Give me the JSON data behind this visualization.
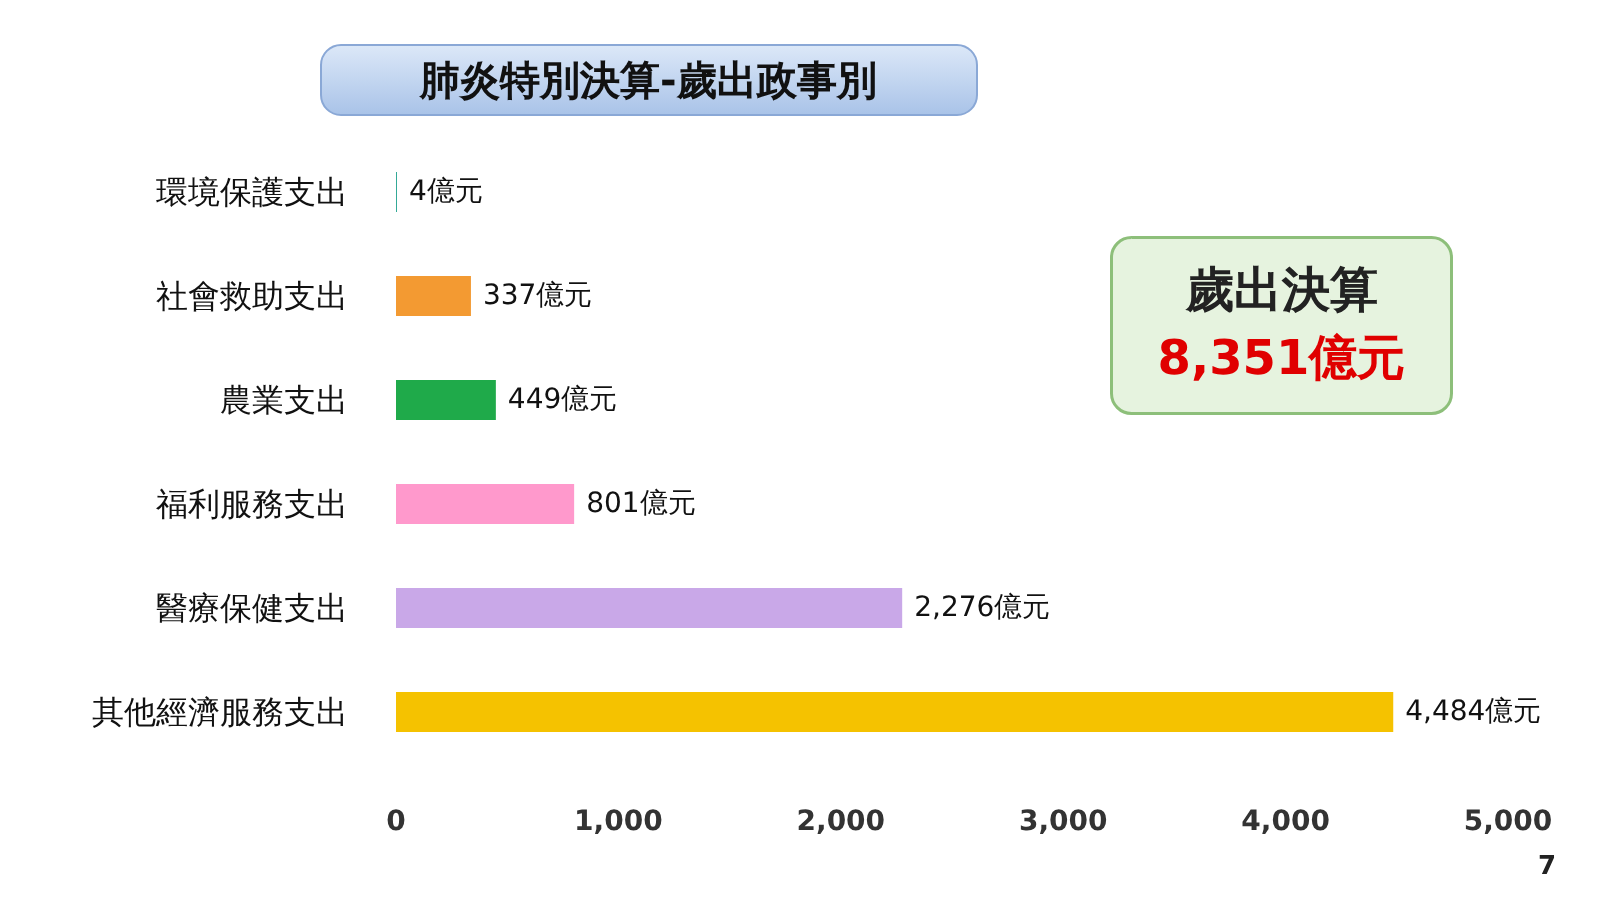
{
  "chart_data": {
    "type": "bar",
    "orientation": "horizontal",
    "title": "肺炎特別決算-歲出政事別",
    "categories": [
      "環境保護支出",
      "社會救助支出",
      "農業支出",
      "福利服務支出",
      "醫療保健支出",
      "其他經濟服務支出"
    ],
    "values": [
      4,
      337,
      449,
      801,
      2276,
      4484
    ],
    "colors": [
      "#1a9e8a",
      "#f39a32",
      "#1faa4a",
      "#ff99cc",
      "#c9a8e8",
      "#f5c200"
    ],
    "value_labels": [
      "4億元",
      "337億元",
      "449億元",
      "801億元",
      "2,276億元",
      "4,484億元"
    ],
    "xlim": [
      0,
      5000
    ],
    "xticks": [
      0,
      {
        "value": 1000,
        "label": "1,000"
      },
      {
        "value": 2000,
        "label": "2,000"
      },
      {
        "value": 3000,
        "label": "3,000"
      },
      {
        "value": 4000,
        "label": "4,000"
      },
      {
        "value": 5000,
        "label": "5,000"
      }
    ],
    "grid": false,
    "annotations": [
      "歲出決算",
      "8,351億元",
      "7"
    ]
  }
}
